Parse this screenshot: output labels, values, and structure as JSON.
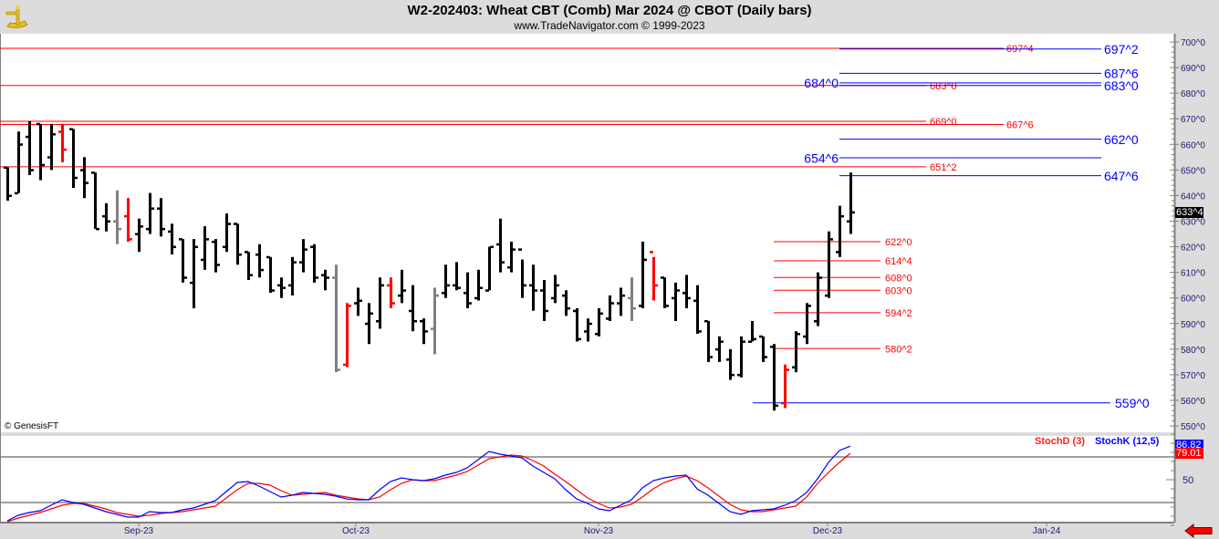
{
  "header": {
    "title": "W2-202403:  Wheat CBT (Comb) Mar 2024 @ CBOT  (Daily bars)",
    "subtitle": "www.TradeNavigator.com © 1999-2023",
    "logo": "sextant-logo"
  },
  "watermark": "© GenesisFT",
  "last_price_label": "633^4",
  "colors": {
    "up_level": "#ff0000",
    "down_level": "#0000ff",
    "bar": "#000000",
    "bar_red": "#ff0000",
    "bar_gray": "#808080",
    "stochK": "#0000ff",
    "stochD": "#ff0000",
    "axis_text": "#1a1a6e"
  },
  "nav": {
    "icon": "back-arrow-icon"
  },
  "chart_data": [
    {
      "type": "ohlc",
      "title": "W2-202403:  Wheat CBT (Comb) Mar 2024 @ CBOT  (Daily bars)",
      "ylim": [
        545,
        702
      ],
      "y_ticks": [
        "700^0",
        "690^0",
        "680^0",
        "670^0",
        "660^0",
        "650^0",
        "640^0",
        "630^0",
        "620^0",
        "610^0",
        "600^0",
        "590^0",
        "580^0",
        "570^0",
        "560^0",
        "550^0"
      ],
      "x_ticks": [
        "Sep-23",
        "Oct-23",
        "Nov-23",
        "Dec-23",
        "Jan-24"
      ],
      "bar_fields": [
        "high",
        "low",
        "open",
        "close",
        "color"
      ],
      "bars": [
        [
          651,
          638,
          651,
          640,
          "k"
        ],
        [
          665,
          641,
          641,
          660,
          "k"
        ],
        [
          669,
          648,
          663,
          650,
          "k"
        ],
        [
          668,
          646,
          668,
          652,
          "k"
        ],
        [
          668,
          650,
          655,
          664,
          "k"
        ],
        [
          668,
          653,
          665,
          658,
          "r"
        ],
        [
          666,
          643,
          666,
          647,
          "k"
        ],
        [
          655,
          639,
          650,
          645,
          "k"
        ],
        [
          649,
          627,
          649,
          627,
          "k"
        ],
        [
          637,
          626,
          632,
          630,
          "k"
        ],
        [
          642,
          621,
          630,
          627,
          "g"
        ],
        [
          639,
          622,
          632,
          623,
          "r"
        ],
        [
          631,
          618,
          625,
          628,
          "k"
        ],
        [
          641,
          625,
          627,
          635,
          "k"
        ],
        [
          639,
          624,
          635,
          627,
          "k"
        ],
        [
          629,
          617,
          626,
          620,
          "k"
        ],
        [
          623,
          606,
          623,
          608,
          "k"
        ],
        [
          623,
          596,
          606,
          620,
          "k"
        ],
        [
          628,
          611,
          615,
          623,
          "k"
        ],
        [
          623,
          610,
          622,
          613,
          "k"
        ],
        [
          633,
          618,
          620,
          629,
          "k"
        ],
        [
          629,
          613,
          629,
          617,
          "k"
        ],
        [
          618,
          607,
          618,
          609,
          "k"
        ],
        [
          621,
          608,
          617,
          611,
          "k"
        ],
        [
          616,
          602,
          616,
          603,
          "k"
        ],
        [
          608,
          600,
          605,
          604,
          "k"
        ],
        [
          616,
          601,
          605,
          614,
          "k"
        ],
        [
          623,
          610,
          614,
          619,
          "k"
        ],
        [
          621,
          606,
          620,
          608,
          "k"
        ],
        [
          611,
          603,
          609,
          608,
          "k"
        ],
        [
          613,
          571,
          608,
          572,
          "g"
        ],
        [
          598,
          573,
          574,
          597,
          "r"
        ],
        [
          604,
          593,
          598,
          599,
          "k"
        ],
        [
          598,
          582,
          590,
          594,
          "k"
        ],
        [
          608,
          588,
          591,
          605,
          "k"
        ],
        [
          608,
          596,
          605,
          598,
          "r"
        ],
        [
          611,
          598,
          601,
          603,
          "k"
        ],
        [
          605,
          587,
          595,
          591,
          "k"
        ],
        [
          592,
          582,
          591,
          587,
          "k"
        ],
        [
          604,
          578,
          588,
          601,
          "g"
        ],
        [
          613,
          600,
          602,
          605,
          "k"
        ],
        [
          614,
          603,
          605,
          604,
          "k"
        ],
        [
          610,
          596,
          602,
          598,
          "k"
        ],
        [
          611,
          599,
          600,
          604,
          "k"
        ],
        [
          620,
          603,
          603,
          620,
          "k"
        ],
        [
          631,
          610,
          621,
          614,
          "k"
        ],
        [
          622,
          610,
          612,
          619,
          "k"
        ],
        [
          615,
          600,
          619,
          605,
          "k"
        ],
        [
          613,
          595,
          605,
          603,
          "k"
        ],
        [
          607,
          591,
          603,
          595,
          "k"
        ],
        [
          609,
          598,
          600,
          605,
          "k"
        ],
        [
          603,
          593,
          601,
          596,
          "k"
        ],
        [
          596,
          583,
          595,
          584,
          "k"
        ],
        [
          592,
          583,
          587,
          590,
          "k"
        ],
        [
          596,
          585,
          586,
          594,
          "k"
        ],
        [
          601,
          591,
          592,
          598,
          "k"
        ],
        [
          604,
          593,
          598,
          601,
          "k"
        ],
        [
          608,
          591,
          600,
          596,
          "g"
        ],
        [
          622,
          596,
          597,
          615,
          "k"
        ],
        [
          616,
          599,
          618,
          605,
          "r"
        ],
        [
          608,
          596,
          608,
          597,
          "k"
        ],
        [
          606,
          591,
          600,
          603,
          "k"
        ],
        [
          609,
          596,
          602,
          600,
          "k"
        ],
        [
          605,
          586,
          599,
          587,
          "k"
        ],
        [
          591,
          575,
          591,
          577,
          "k"
        ],
        [
          585,
          575,
          580,
          583,
          "k"
        ],
        [
          580,
          568,
          576,
          570,
          "k"
        ],
        [
          585,
          569,
          570,
          583,
          "k"
        ],
        [
          591,
          583,
          583,
          584,
          "k"
        ],
        [
          585,
          575,
          585,
          577,
          "k"
        ],
        [
          582,
          556,
          581,
          558,
          "k"
        ],
        [
          574,
          557,
          559,
          572,
          "r"
        ],
        [
          587,
          571,
          573,
          586,
          "k"
        ],
        [
          598,
          582,
          585,
          597,
          "k"
        ],
        [
          610,
          589,
          591,
          608,
          "k"
        ],
        [
          626,
          600,
          601,
          623,
          "k"
        ],
        [
          636,
          616,
          618,
          632,
          "k"
        ],
        [
          649,
          625,
          630,
          633.5,
          "k"
        ]
      ],
      "levels": [
        {
          "label": "697^4",
          "price": 697.5,
          "color": "red",
          "kind": "red-long"
        },
        {
          "label": "697^2",
          "price": 697.25,
          "color": "blue",
          "kind": "blue-right"
        },
        {
          "label": "687^6",
          "price": 687.75,
          "color": "blue",
          "kind": "blue-right"
        },
        {
          "label": "684^0",
          "price": 684,
          "color": "blue",
          "kind": "blue-left"
        },
        {
          "label": "683^0",
          "price": 683,
          "color": "red",
          "kind": "red-mid"
        },
        {
          "label": "683^0",
          "price": 683,
          "color": "blue",
          "kind": "blue-right"
        },
        {
          "label": "669^0",
          "price": 669,
          "color": "red",
          "kind": "red-mid"
        },
        {
          "label": "667^6",
          "price": 667.75,
          "color": "red",
          "kind": "red-long"
        },
        {
          "label": "662^0",
          "price": 662,
          "color": "blue",
          "kind": "blue-right"
        },
        {
          "label": "654^6",
          "price": 654.75,
          "color": "blue",
          "kind": "blue-left"
        },
        {
          "label": "651^2",
          "price": 651.25,
          "color": "red",
          "kind": "red-mid"
        },
        {
          "label": "647^6",
          "price": 647.75,
          "color": "blue",
          "kind": "blue-right"
        },
        {
          "label": "622^0",
          "price": 622,
          "color": "red",
          "kind": "red-lower"
        },
        {
          "label": "614^4",
          "price": 614.5,
          "color": "red",
          "kind": "red-lower"
        },
        {
          "label": "608^0",
          "price": 608,
          "color": "red",
          "kind": "red-lower"
        },
        {
          "label": "603^0",
          "price": 603,
          "color": "red",
          "kind": "red-lower"
        },
        {
          "label": "594^2",
          "price": 594.25,
          "color": "red",
          "kind": "red-lower"
        },
        {
          "label": "580^2",
          "price": 580.25,
          "color": "red",
          "kind": "red-lower"
        },
        {
          "label": "559^0",
          "price": 559,
          "color": "blue",
          "kind": "blue-bottom"
        }
      ]
    },
    {
      "type": "line",
      "ylim": [
        0,
        100
      ],
      "y_ticks": [
        "50"
      ],
      "reference_lines": [
        25,
        75
      ],
      "series": [
        {
          "name": "StochD (3)",
          "color": "#ff0000",
          "last": "79.01",
          "values": [
            4,
            8,
            11,
            14,
            18,
            22,
            24,
            24,
            21,
            18,
            14,
            12,
            10,
            11,
            13,
            14,
            15,
            17,
            19,
            21,
            30,
            39,
            46,
            46,
            44,
            38,
            33,
            34,
            35,
            36,
            33,
            31,
            29,
            28,
            31,
            39,
            46,
            50,
            49,
            49,
            52,
            55,
            59,
            66,
            73,
            75,
            77,
            76,
            71,
            65,
            56,
            48,
            39,
            30,
            24,
            19,
            20,
            23,
            31,
            40,
            47,
            51,
            54,
            49,
            41,
            32,
            23,
            17,
            15,
            15,
            17,
            19,
            21,
            31,
            46,
            58,
            69,
            79.01
          ]
        },
        {
          "name": "StochK (12,5)",
          "color": "#0000ff",
          "last": "86.82",
          "values": [
            5,
            11,
            14,
            16,
            22,
            28,
            25,
            23,
            19,
            15,
            12,
            9,
            9,
            15,
            14,
            14,
            17,
            19,
            23,
            27,
            37,
            47,
            48,
            43,
            37,
            31,
            33,
            36,
            35,
            34,
            32,
            29,
            28,
            28,
            39,
            48,
            52,
            50,
            49,
            51,
            55,
            58,
            63,
            72,
            81,
            78,
            76,
            74,
            65,
            58,
            51,
            39,
            29,
            24,
            18,
            16,
            22,
            28,
            41,
            49,
            52,
            54,
            55,
            40,
            33,
            24,
            15,
            12,
            16,
            17,
            18,
            22,
            27,
            36,
            51,
            69,
            82,
            86.82
          ]
        }
      ]
    }
  ]
}
